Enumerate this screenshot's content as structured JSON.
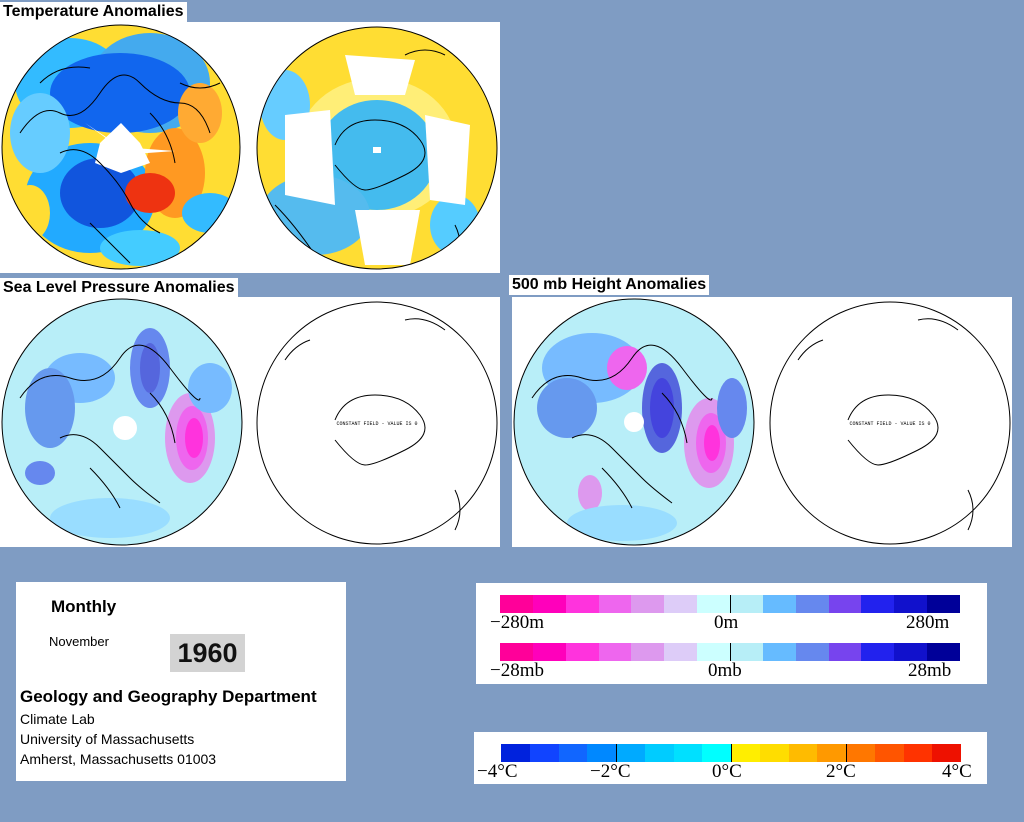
{
  "titles": {
    "temperature": "Temperature Anomalies",
    "slp": "Sea Level Pressure Anomalies",
    "height500": "500 mb Height Anomalies"
  },
  "maps": {
    "constant_field_text": "CONSTANT FIELD - VALUE IS 0"
  },
  "info": {
    "period": "Monthly",
    "month": "November",
    "year": "1960",
    "department": "Geology and Geography Department",
    "lab": "Climate Lab",
    "university": "University of Massachusetts",
    "address": "Amherst, Massachusetts 01003"
  },
  "scales": {
    "height": {
      "min": "−280m",
      "mid": "0m",
      "max": "280m"
    },
    "pressure": {
      "min": "−28mb",
      "mid": "0mb",
      "max": "28mb"
    },
    "temperature": [
      "−4°C",
      "−2°C",
      "0°C",
      "2°C",
      "4°C"
    ]
  },
  "colors": {
    "background": "#7f9cc3",
    "anomaly_scale": [
      "#ff0099",
      "#ff00bb",
      "#ff33dd",
      "#ee66ee",
      "#dd99ee",
      "#ddccf8",
      "#ccffff",
      "#b7eef7",
      "#66bbff",
      "#6688ee",
      "#7744ee",
      "#2222ee",
      "#1111cc",
      "#000099"
    ],
    "temperature_scale": [
      "#0022dd",
      "#1144ff",
      "#1166ff",
      "#0088ff",
      "#00aaff",
      "#00ccff",
      "#00e0ff",
      "#00ffff",
      "#ffee00",
      "#ffdd00",
      "#ffbb00",
      "#ff9900",
      "#ff7700",
      "#ff5500",
      "#ff3300",
      "#ee1100"
    ]
  }
}
